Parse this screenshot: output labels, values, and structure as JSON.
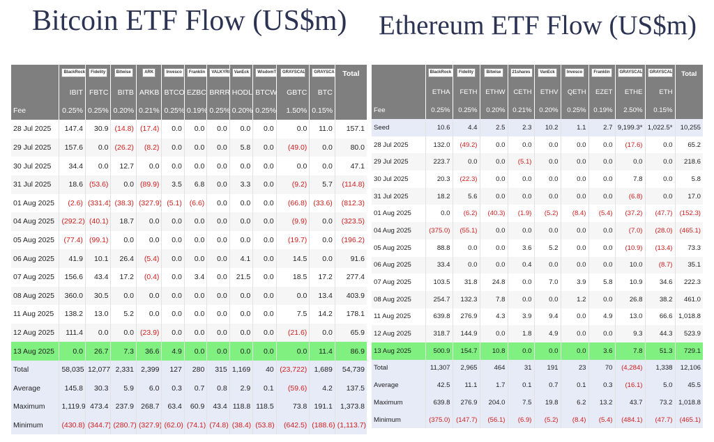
{
  "btc": {
    "title": "Bitcoin ETF Flow (US$m)",
    "logos": [
      "BlackRock",
      "Fidelity",
      "Bitwise",
      "ARK",
      "Invesco",
      "Franklin",
      "VALKYRIE",
      "VanEck",
      "WisdomTree",
      "GRAYSCALE",
      "GRAYSCALE"
    ],
    "total_label": "Total",
    "tickers": [
      "IBIT",
      "FBTC",
      "BITB",
      "ARKB",
      "BTCO",
      "EZBC",
      "BRRR",
      "HODL",
      "BTCW",
      "GBTC",
      "BTC"
    ],
    "fee_label": "Fee",
    "fees": [
      "0.25%",
      "0.25%",
      "0.20%",
      "0.21%",
      "0.25%",
      "0.19%",
      "0.25%",
      "0.20%",
      "0.25%",
      "1.50%",
      "0.15%"
    ],
    "rows": [
      {
        "date": "28 Jul 2025",
        "vals": [
          "147.4",
          "30.9",
          "(14.8)",
          "(17.4)",
          "0.0",
          "0.0",
          "0.0",
          "0.0",
          "0.0",
          "0.0",
          "11.0",
          "157.1"
        ]
      },
      {
        "date": "29 Jul 2025",
        "vals": [
          "157.6",
          "0.0",
          "(26.2)",
          "(8.2)",
          "0.0",
          "0.0",
          "0.0",
          "5.8",
          "0.0",
          "(49.0)",
          "0.0",
          "80.0"
        ]
      },
      {
        "date": "30 Jul 2025",
        "vals": [
          "34.4",
          "0.0",
          "12.7",
          "0.0",
          "0.0",
          "0.0",
          "0.0",
          "0.0",
          "0.0",
          "0.0",
          "0.0",
          "47.1"
        ]
      },
      {
        "date": "31 Jul 2025",
        "vals": [
          "18.6",
          "(53.6)",
          "0.0",
          "(89.9)",
          "3.5",
          "6.8",
          "0.0",
          "3.3",
          "0.0",
          "(9.2)",
          "5.7",
          "(114.8)"
        ]
      },
      {
        "date": "01 Aug 2025",
        "vals": [
          "(2.6)",
          "(331.4)",
          "(38.3)",
          "(327.9)",
          "(5.1)",
          "(6.6)",
          "0.0",
          "0.0",
          "0.0",
          "(66.8)",
          "(33.6)",
          "(812.3)"
        ]
      },
      {
        "date": "04 Aug 2025",
        "vals": [
          "(292.2)",
          "(40.1)",
          "18.7",
          "0.0",
          "0.0",
          "0.0",
          "0.0",
          "0.0",
          "0.0",
          "(9.9)",
          "0.0",
          "(323.5)"
        ]
      },
      {
        "date": "05 Aug 2025",
        "vals": [
          "(77.4)",
          "(99.1)",
          "0.0",
          "0.0",
          "0.0",
          "0.0",
          "0.0",
          "0.0",
          "0.0",
          "(19.7)",
          "0.0",
          "(196.2)"
        ]
      },
      {
        "date": "06 Aug 2025",
        "vals": [
          "41.9",
          "10.1",
          "26.4",
          "(5.4)",
          "0.0",
          "0.0",
          "0.0",
          "4.1",
          "0.0",
          "14.5",
          "0.0",
          "91.6"
        ]
      },
      {
        "date": "07 Aug 2025",
        "vals": [
          "156.6",
          "43.4",
          "17.2",
          "(0.4)",
          "0.0",
          "3.4",
          "0.0",
          "21.5",
          "0.0",
          "18.5",
          "17.2",
          "277.4"
        ]
      },
      {
        "date": "08 Aug 2025",
        "vals": [
          "360.0",
          "30.5",
          "0.0",
          "0.0",
          "0.0",
          "0.0",
          "0.0",
          "0.0",
          "0.0",
          "0.0",
          "13.4",
          "403.9"
        ]
      },
      {
        "date": "11 Aug 2025",
        "vals": [
          "138.2",
          "13.0",
          "5.2",
          "0.0",
          "0.0",
          "0.0",
          "0.0",
          "0.0",
          "0.0",
          "7.5",
          "14.2",
          "178.1"
        ]
      },
      {
        "date": "12 Aug 2025",
        "vals": [
          "111.4",
          "0.0",
          "0.0",
          "(23.9)",
          "0.0",
          "0.0",
          "0.0",
          "0.0",
          "0.0",
          "(21.6)",
          "0.0",
          "65.9"
        ]
      },
      {
        "date": "13 Aug 2025",
        "vals": [
          "0.0",
          "26.7",
          "7.3",
          "36.6",
          "4.9",
          "0.0",
          "0.0",
          "0.0",
          "0.0",
          "0.0",
          "11.4",
          "86.9"
        ],
        "highlight": true
      }
    ],
    "summary": [
      {
        "label": "Total",
        "vals": [
          "58,035",
          "12,077",
          "2,331",
          "2,399",
          "127",
          "280",
          "315",
          "1,169",
          "40",
          "(23,722)",
          "1,689",
          "54,739"
        ]
      },
      {
        "label": "Average",
        "vals": [
          "145.8",
          "30.3",
          "5.9",
          "6.0",
          "0.3",
          "0.7",
          "0.8",
          "2.9",
          "0.1",
          "(59.6)",
          "4.2",
          "137.5"
        ]
      },
      {
        "label": "Maximum",
        "vals": [
          "1,119.9",
          "473.4",
          "237.9",
          "268.7",
          "63.4",
          "60.9",
          "43.4",
          "118.8",
          "118.5",
          "73.8",
          "191.1",
          "1,373.8"
        ]
      },
      {
        "label": "Minimum",
        "vals": [
          "(430.8)",
          "(344.7)",
          "(280.7)",
          "(327.9)",
          "(62.0)",
          "(74.1)",
          "(74.8)",
          "(38.4)",
          "(53.8)",
          "(642.5)",
          "(188.6)",
          "(1,113.7)"
        ]
      }
    ]
  },
  "eth": {
    "title": "Ethereum ETF Flow (US$m)",
    "logos": [
      "BlackRock",
      "Fidelity",
      "Bitwise",
      "21shares",
      "VanEck",
      "Invesco",
      "Franklin",
      "GRAYSCALE",
      "GRAYSCALE"
    ],
    "total_label": "Total",
    "tickers": [
      "ETHA",
      "FETH",
      "ETHW",
      "CETH",
      "ETHV",
      "QETH",
      "EZET",
      "ETHE",
      "ETH"
    ],
    "fee_label": "Fee",
    "fees": [
      "0.25%",
      "0.25%",
      "0.20%",
      "0.21%",
      "0.20%",
      "0.25%",
      "0.19%",
      "2.50%",
      "0.15%"
    ],
    "seed": {
      "label": "Seed",
      "vals": [
        "10.6",
        "4.4",
        "2.5",
        "2.3",
        "10.2",
        "1.1",
        "2.7",
        "9,199.3*",
        "1,022.5*",
        "10,255"
      ]
    },
    "rows": [
      {
        "date": "28 Jul 2025",
        "vals": [
          "132.0",
          "(49.2)",
          "0.0",
          "0.0",
          "0.0",
          "0.0",
          "0.0",
          "(17.6)",
          "0.0",
          "65.2"
        ]
      },
      {
        "date": "29 Jul 2025",
        "vals": [
          "223.7",
          "0.0",
          "0.0",
          "(5.1)",
          "0.0",
          "0.0",
          "0.0",
          "0.0",
          "0.0",
          "218.6"
        ]
      },
      {
        "date": "30 Jul 2025",
        "vals": [
          "20.3",
          "(22.3)",
          "0.0",
          "0.0",
          "0.0",
          "0.0",
          "0.0",
          "7.8",
          "0.0",
          "5.8"
        ]
      },
      {
        "date": "31 Jul 2025",
        "vals": [
          "18.2",
          "5.6",
          "0.0",
          "0.0",
          "0.0",
          "0.0",
          "0.0",
          "(6.8)",
          "0.0",
          "17.0"
        ]
      },
      {
        "date": "01 Aug 2025",
        "vals": [
          "0.0",
          "(6.2)",
          "(40.3)",
          "(1.9)",
          "(5.2)",
          "(8.4)",
          "(5.4)",
          "(37.2)",
          "(47.7)",
          "(152.3)"
        ]
      },
      {
        "date": "04 Aug 2025",
        "vals": [
          "(375.0)",
          "(55.1)",
          "0.0",
          "0.0",
          "0.0",
          "0.0",
          "0.0",
          "(7.0)",
          "(28.0)",
          "(465.1)"
        ]
      },
      {
        "date": "05 Aug 2025",
        "vals": [
          "88.8",
          "0.0",
          "0.0",
          "3.6",
          "5.2",
          "0.0",
          "0.0",
          "(10.9)",
          "(13.4)",
          "73.3"
        ]
      },
      {
        "date": "06 Aug 2025",
        "vals": [
          "33.4",
          "0.0",
          "0.0",
          "0.4",
          "0.0",
          "0.0",
          "0.0",
          "10.0",
          "(8.7)",
          "35.1"
        ]
      },
      {
        "date": "07 Aug 2025",
        "vals": [
          "103.5",
          "31.8",
          "24.8",
          "0.0",
          "7.0",
          "3.9",
          "5.8",
          "10.9",
          "34.6",
          "222.3"
        ]
      },
      {
        "date": "08 Aug 2025",
        "vals": [
          "254.7",
          "132.3",
          "7.8",
          "0.0",
          "0.0",
          "1.2",
          "0.0",
          "26.8",
          "38.2",
          "461.0"
        ]
      },
      {
        "date": "11 Aug 2025",
        "vals": [
          "639.8",
          "276.9",
          "4.3",
          "3.9",
          "9.4",
          "0.0",
          "4.9",
          "13.0",
          "66.6",
          "1,018.8"
        ]
      },
      {
        "date": "12 Aug 2025",
        "vals": [
          "318.7",
          "144.9",
          "0.0",
          "1.8",
          "4.9",
          "0.0",
          "0.0",
          "9.3",
          "44.3",
          "523.9"
        ]
      },
      {
        "date": "13 Aug 2025",
        "vals": [
          "500.9",
          "154.7",
          "10.8",
          "0.0",
          "0.0",
          "0.0",
          "3.6",
          "7.8",
          "51.3",
          "729.1"
        ],
        "highlight": true
      }
    ],
    "summary": [
      {
        "label": "Total",
        "vals": [
          "11,307",
          "2,965",
          "464",
          "31",
          "191",
          "23",
          "70",
          "(4,284)",
          "1,338",
          "12,106"
        ]
      },
      {
        "label": "Average",
        "vals": [
          "42.5",
          "11.1",
          "1.7",
          "0.1",
          "0.7",
          "0.1",
          "0.3",
          "(16.1)",
          "5.0",
          "45.5"
        ]
      },
      {
        "label": "Maximum",
        "vals": [
          "639.8",
          "276.9",
          "204.0",
          "7.5",
          "19.8",
          "6.2",
          "13.2",
          "43.7",
          "73.2",
          "1,018.8"
        ]
      },
      {
        "label": "Minimum",
        "vals": [
          "(375.0)",
          "(147.7)",
          "(56.1)",
          "(6.9)",
          "(5.2)",
          "(8.4)",
          "(5.4)",
          "(484.1)",
          "(47.7)",
          "(465.1)"
        ]
      }
    ]
  }
}
